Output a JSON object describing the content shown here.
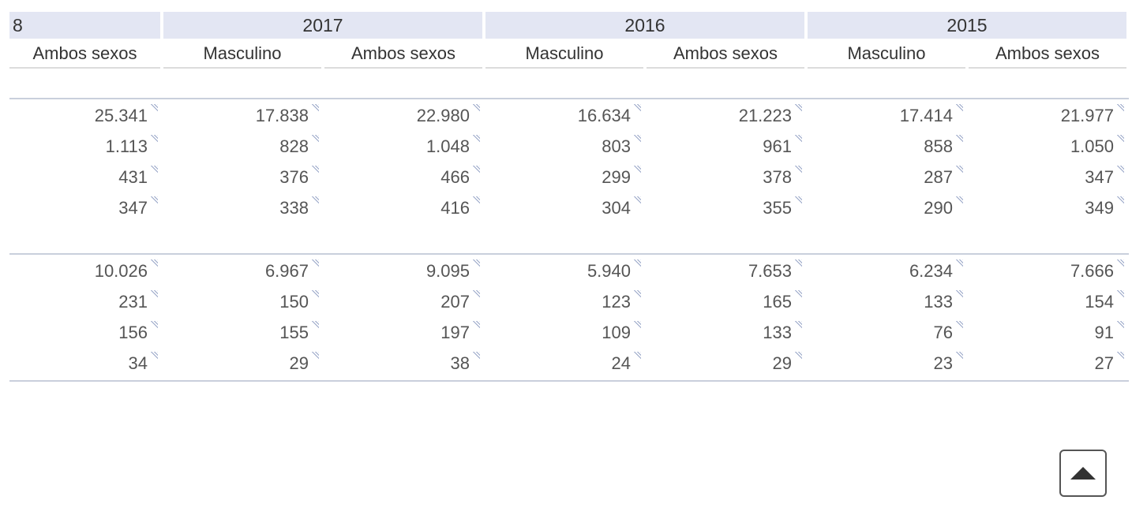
{
  "header": {
    "corner": "8",
    "years": [
      "2017",
      "2016",
      "2015"
    ],
    "columns": [
      "Ambos sexos",
      "Masculino",
      "Ambos sexos",
      "Masculino",
      "Ambos sexos",
      "Masculino",
      "Ambos sexos"
    ]
  },
  "sections": [
    {
      "rows": [
        [
          "25.341",
          "17.838",
          "22.980",
          "16.634",
          "21.223",
          "17.414",
          "21.977"
        ],
        [
          "1.113",
          "828",
          "1.048",
          "803",
          "961",
          "858",
          "1.050"
        ],
        [
          "431",
          "376",
          "466",
          "299",
          "378",
          "287",
          "347"
        ],
        [
          "347",
          "338",
          "416",
          "304",
          "355",
          "290",
          "349"
        ]
      ]
    },
    {
      "rows": [
        [
          "10.026",
          "6.967",
          "9.095",
          "5.940",
          "7.653",
          "6.234",
          "7.666"
        ],
        [
          "231",
          "150",
          "207",
          "123",
          "165",
          "133",
          "154"
        ],
        [
          "156",
          "155",
          "197",
          "109",
          "133",
          "76",
          "91"
        ],
        [
          "34",
          "29",
          "38",
          "24",
          "29",
          "23",
          "27"
        ]
      ]
    }
  ]
}
